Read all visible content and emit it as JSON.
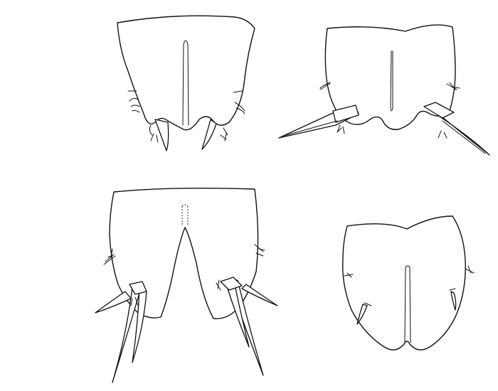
{
  "figure": {
    "panels": [
      {
        "id": "A",
        "description_shown": false
      },
      {
        "id": "B",
        "description_shown": false
      },
      {
        "id": "C",
        "description_shown": false
      },
      {
        "id": "D",
        "description_shown": false
      }
    ]
  },
  "colors": {
    "background": "#ffffff",
    "ink": "#111111"
  }
}
